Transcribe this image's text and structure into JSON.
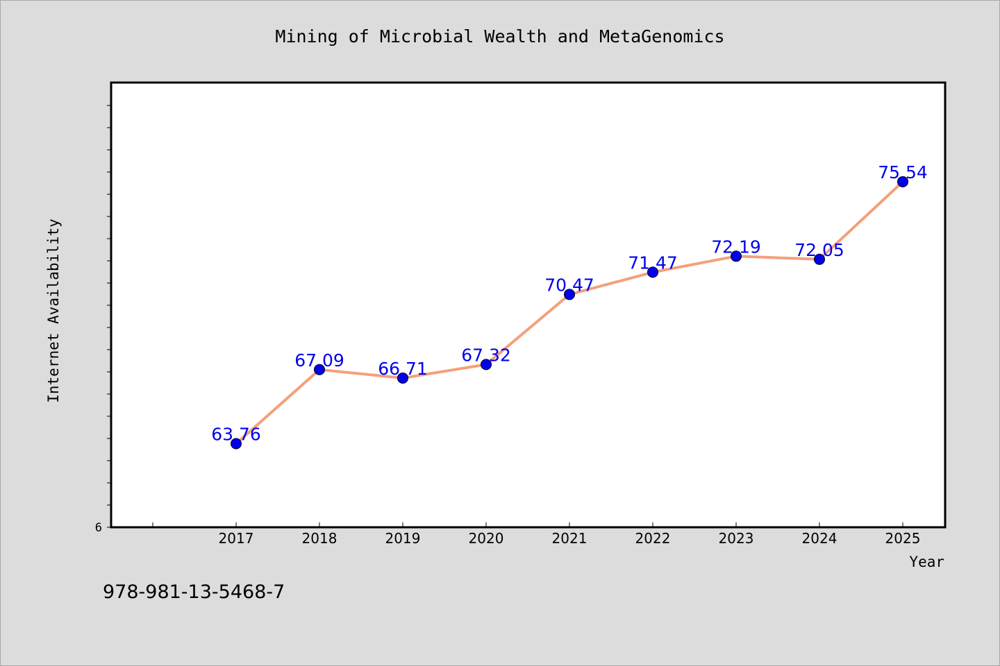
{
  "chart_data": {
    "type": "line",
    "title": "Mining of Microbial Wealth and MetaGenomics",
    "xlabel": "Year",
    "ylabel": "Internet Availability",
    "x": [
      "2017",
      "2018",
      "2019",
      "2020",
      "2021",
      "2022",
      "2023",
      "2024",
      "2025"
    ],
    "series": [
      {
        "values": [
          63.76,
          67.09,
          66.71,
          67.32,
          70.47,
          71.47,
          72.19,
          72.05,
          75.54
        ],
        "labels": [
          "63.76",
          "67.09",
          "66.71",
          "67.32",
          "70.47",
          "71.47",
          "72.19",
          "72.05",
          "75.54"
        ],
        "line_color": "#f4a07a",
        "marker_color": "#0000ee",
        "label_color": "#0000ee"
      }
    ],
    "y_tick_label": "6",
    "ylim": [
      60,
      80
    ],
    "grid": false,
    "legend": "none"
  },
  "footer_text": "978-981-13-5468-7",
  "colors": {
    "background": "#dcdcdc",
    "plot_background": "#ffffff",
    "axis": "#000000"
  }
}
